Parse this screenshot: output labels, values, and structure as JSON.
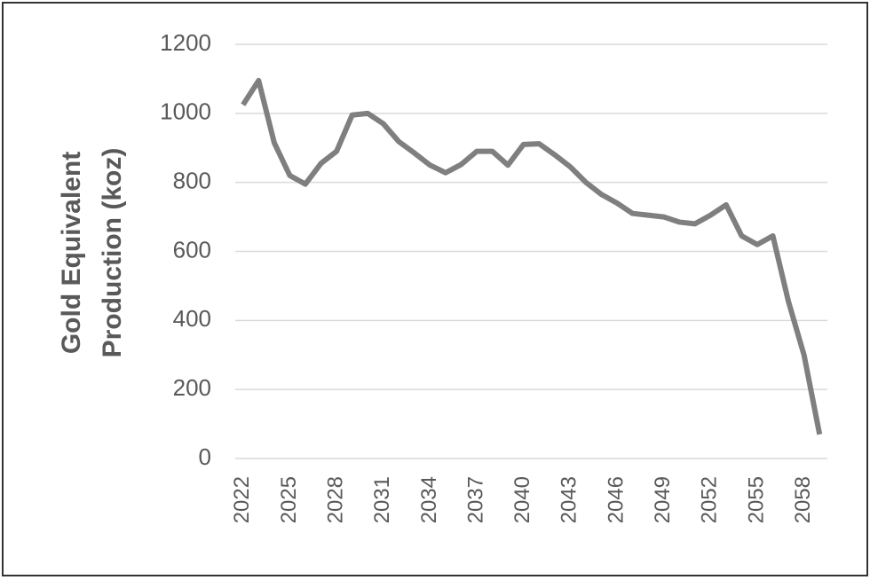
{
  "chart_data": {
    "type": "line",
    "y_label": [
      "Gold Equivalent",
      "Production (koz)"
    ],
    "x": [
      2022,
      2023,
      2024,
      2025,
      2026,
      2027,
      2028,
      2029,
      2030,
      2031,
      2032,
      2033,
      2034,
      2035,
      2036,
      2037,
      2038,
      2039,
      2040,
      2041,
      2042,
      2043,
      2044,
      2045,
      2046,
      2047,
      2048,
      2049,
      2050,
      2051,
      2052,
      2053,
      2054,
      2055,
      2056,
      2057,
      2058,
      2059
    ],
    "series": [
      {
        "color": "#7f7f7f",
        "values": [
          1025,
          1095,
          915,
          820,
          795,
          855,
          890,
          995,
          1000,
          970,
          918,
          885,
          850,
          828,
          852,
          890,
          890,
          850,
          910,
          912,
          880,
          845,
          800,
          765,
          740,
          710,
          705,
          700,
          685,
          680,
          705,
          735,
          645,
          620,
          645,
          455,
          300,
          70
        ]
      }
    ],
    "xlim": [
      2021.5,
      2059.5
    ],
    "xticks": [
      2022,
      2025,
      2028,
      2031,
      2034,
      2037,
      2040,
      2043,
      2046,
      2049,
      2052,
      2055,
      2058
    ],
    "ylim": [
      0,
      1200
    ],
    "yticks": [
      0,
      200,
      400,
      600,
      800,
      1000,
      1200
    ],
    "grid": true
  }
}
